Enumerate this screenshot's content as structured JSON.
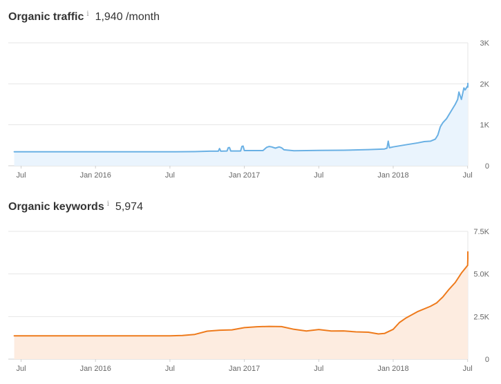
{
  "chart_data": [
    {
      "id": "traffic",
      "type": "area",
      "title": "Organic traffic",
      "info_icon": "info-icon",
      "value_text": "1,940 /month",
      "x_ticks": [
        "Jul",
        "Jan 2016",
        "Jul",
        "Jan 2017",
        "Jul",
        "Jan 2018",
        "Jul"
      ],
      "x_tick_months": [
        0,
        6,
        12,
        18,
        24,
        30,
        36
      ],
      "y_ticks": [
        {
          "value": 0,
          "label": "0"
        },
        {
          "value": 1000,
          "label": "1K"
        },
        {
          "value": 2000,
          "label": "2K"
        },
        {
          "value": 3000,
          "label": "3K"
        }
      ],
      "ylim": [
        0,
        3000
      ],
      "xlim": [
        -0.55,
        36.6
      ],
      "grid": true,
      "line_color": "#69b0e4",
      "fill_color": "#eaf4fd",
      "series": [
        {
          "name": "Organic traffic",
          "points": [
            [
              -0.55,
              340
            ],
            [
              4,
              340
            ],
            [
              8,
              340
            ],
            [
              12,
              340
            ],
            [
              14,
              345
            ],
            [
              15.2,
              355
            ],
            [
              15.9,
              355
            ],
            [
              16,
              420
            ],
            [
              16.1,
              355
            ],
            [
              16.6,
              360
            ],
            [
              16.7,
              440
            ],
            [
              16.8,
              445
            ],
            [
              16.9,
              360
            ],
            [
              17.7,
              360
            ],
            [
              17.8,
              470
            ],
            [
              17.9,
              480
            ],
            [
              18,
              370
            ],
            [
              19.5,
              370
            ],
            [
              19.8,
              450
            ],
            [
              20,
              470
            ],
            [
              20.2,
              460
            ],
            [
              20.5,
              430
            ],
            [
              20.8,
              460
            ],
            [
              21,
              440
            ],
            [
              21.2,
              390
            ],
            [
              22,
              365
            ],
            [
              24,
              375
            ],
            [
              26,
              380
            ],
            [
              28,
              395
            ],
            [
              29.3,
              410
            ],
            [
              29.5,
              430
            ],
            [
              29.6,
              600
            ],
            [
              29.7,
              440
            ],
            [
              30,
              460
            ],
            [
              31,
              510
            ],
            [
              32,
              560
            ],
            [
              32.5,
              590
            ],
            [
              33,
              600
            ],
            [
              33.4,
              650
            ],
            [
              33.6,
              750
            ],
            [
              33.8,
              950
            ],
            [
              34,
              1050
            ],
            [
              34.3,
              1150
            ],
            [
              34.6,
              1300
            ],
            [
              35,
              1500
            ],
            [
              35.2,
              1620
            ],
            [
              35.3,
              1800
            ],
            [
              35.5,
              1620
            ],
            [
              35.7,
              1900
            ],
            [
              35.8,
              1850
            ],
            [
              36,
              1950
            ],
            [
              36.2,
              1920
            ],
            [
              36.4,
              1980
            ],
            [
              36.6,
              2010
            ]
          ]
        }
      ]
    },
    {
      "id": "keywords",
      "type": "area",
      "title": "Organic keywords",
      "info_icon": "info-icon",
      "value_text": "5,974",
      "x_ticks": [
        "Jul",
        "Jan 2016",
        "Jul",
        "Jan 2017",
        "Jul",
        "Jan 2018",
        "Jul"
      ],
      "x_tick_months": [
        0,
        6,
        12,
        18,
        24,
        30,
        36
      ],
      "y_ticks": [
        {
          "value": 0,
          "label": "0"
        },
        {
          "value": 2500,
          "label": "2.5K"
        },
        {
          "value": 5000,
          "label": "5.0K"
        },
        {
          "value": 7500,
          "label": "7.5K"
        }
      ],
      "ylim": [
        0,
        7500
      ],
      "xlim": [
        -0.55,
        36.6
      ],
      "grid": true,
      "line_color": "#ee7a1b",
      "fill_color": "#fdece0",
      "series": [
        {
          "name": "Organic keywords",
          "points": [
            [
              -0.55,
              1370
            ],
            [
              4,
              1370
            ],
            [
              8,
              1370
            ],
            [
              12,
              1370
            ],
            [
              13,
              1390
            ],
            [
              14,
              1450
            ],
            [
              15,
              1640
            ],
            [
              16,
              1700
            ],
            [
              17,
              1720
            ],
            [
              18,
              1850
            ],
            [
              19,
              1900
            ],
            [
              20,
              1920
            ],
            [
              21,
              1910
            ],
            [
              22,
              1750
            ],
            [
              23,
              1650
            ],
            [
              24,
              1740
            ],
            [
              25,
              1650
            ],
            [
              26,
              1660
            ],
            [
              27,
              1600
            ],
            [
              28,
              1580
            ],
            [
              28.8,
              1480
            ],
            [
              29.3,
              1510
            ],
            [
              30,
              1750
            ],
            [
              30.5,
              2150
            ],
            [
              31,
              2400
            ],
            [
              32,
              2800
            ],
            [
              33,
              3100
            ],
            [
              33.5,
              3300
            ],
            [
              34,
              3650
            ],
            [
              34.5,
              4100
            ],
            [
              35,
              4500
            ],
            [
              35.5,
              5050
            ],
            [
              36,
              5500
            ],
            [
              36.3,
              5900
            ],
            [
              36.6,
              6300
            ]
          ]
        }
      ]
    }
  ]
}
